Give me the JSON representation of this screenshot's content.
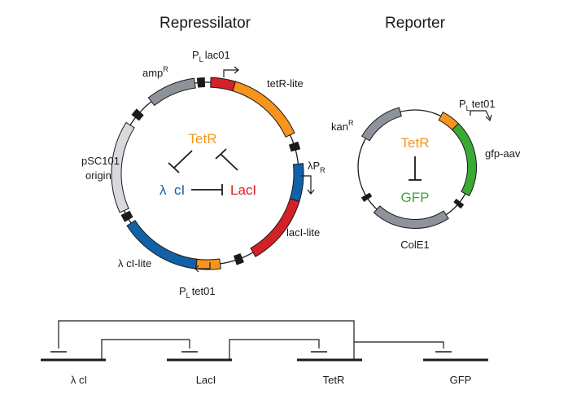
{
  "colors": {
    "tetR": "#f7941d",
    "lacI": "#d42027",
    "lambda": "#1261a7",
    "gfp": "#3aaa35",
    "backbone_gray": "#8d929b",
    "origin_light": "#d7d9dd",
    "line": "#1a1a1a"
  },
  "repressilator": {
    "title": "Repressilator",
    "promoter_top": {
      "p": "P",
      "sub": "L",
      "rest": "lac01"
    },
    "tetR_lite": "tetR-lite",
    "ampR": {
      "text": "amp",
      "sup": "R"
    },
    "origin_line1": "pSC101",
    "origin_line2": "origin",
    "lambda_promoter": {
      "text": "λP",
      "sub": "R"
    },
    "lacI_lite": "lacI-lite",
    "lambda_cl_lite": "λ  cI-lite",
    "promoter_bottom": {
      "p": "P",
      "sub": "L",
      "rest": "tet01"
    },
    "inner": {
      "tetR": "TetR",
      "lambda_part1": "λ",
      "lambda_part2": "cI",
      "lacI": "LacI"
    }
  },
  "reporter": {
    "title": "Reporter",
    "kanR": {
      "text": "kan",
      "sup": "R"
    },
    "promoter": {
      "p": "P",
      "sub": "L",
      "rest": "tet01"
    },
    "gfp_aav": "gfp-aav",
    "colE1": "ColE1",
    "inner": {
      "tetR": "TetR",
      "gfp": "GFP"
    }
  },
  "bottom_genes": [
    "λ cI",
    "LacI",
    "TetR",
    "GFP"
  ]
}
